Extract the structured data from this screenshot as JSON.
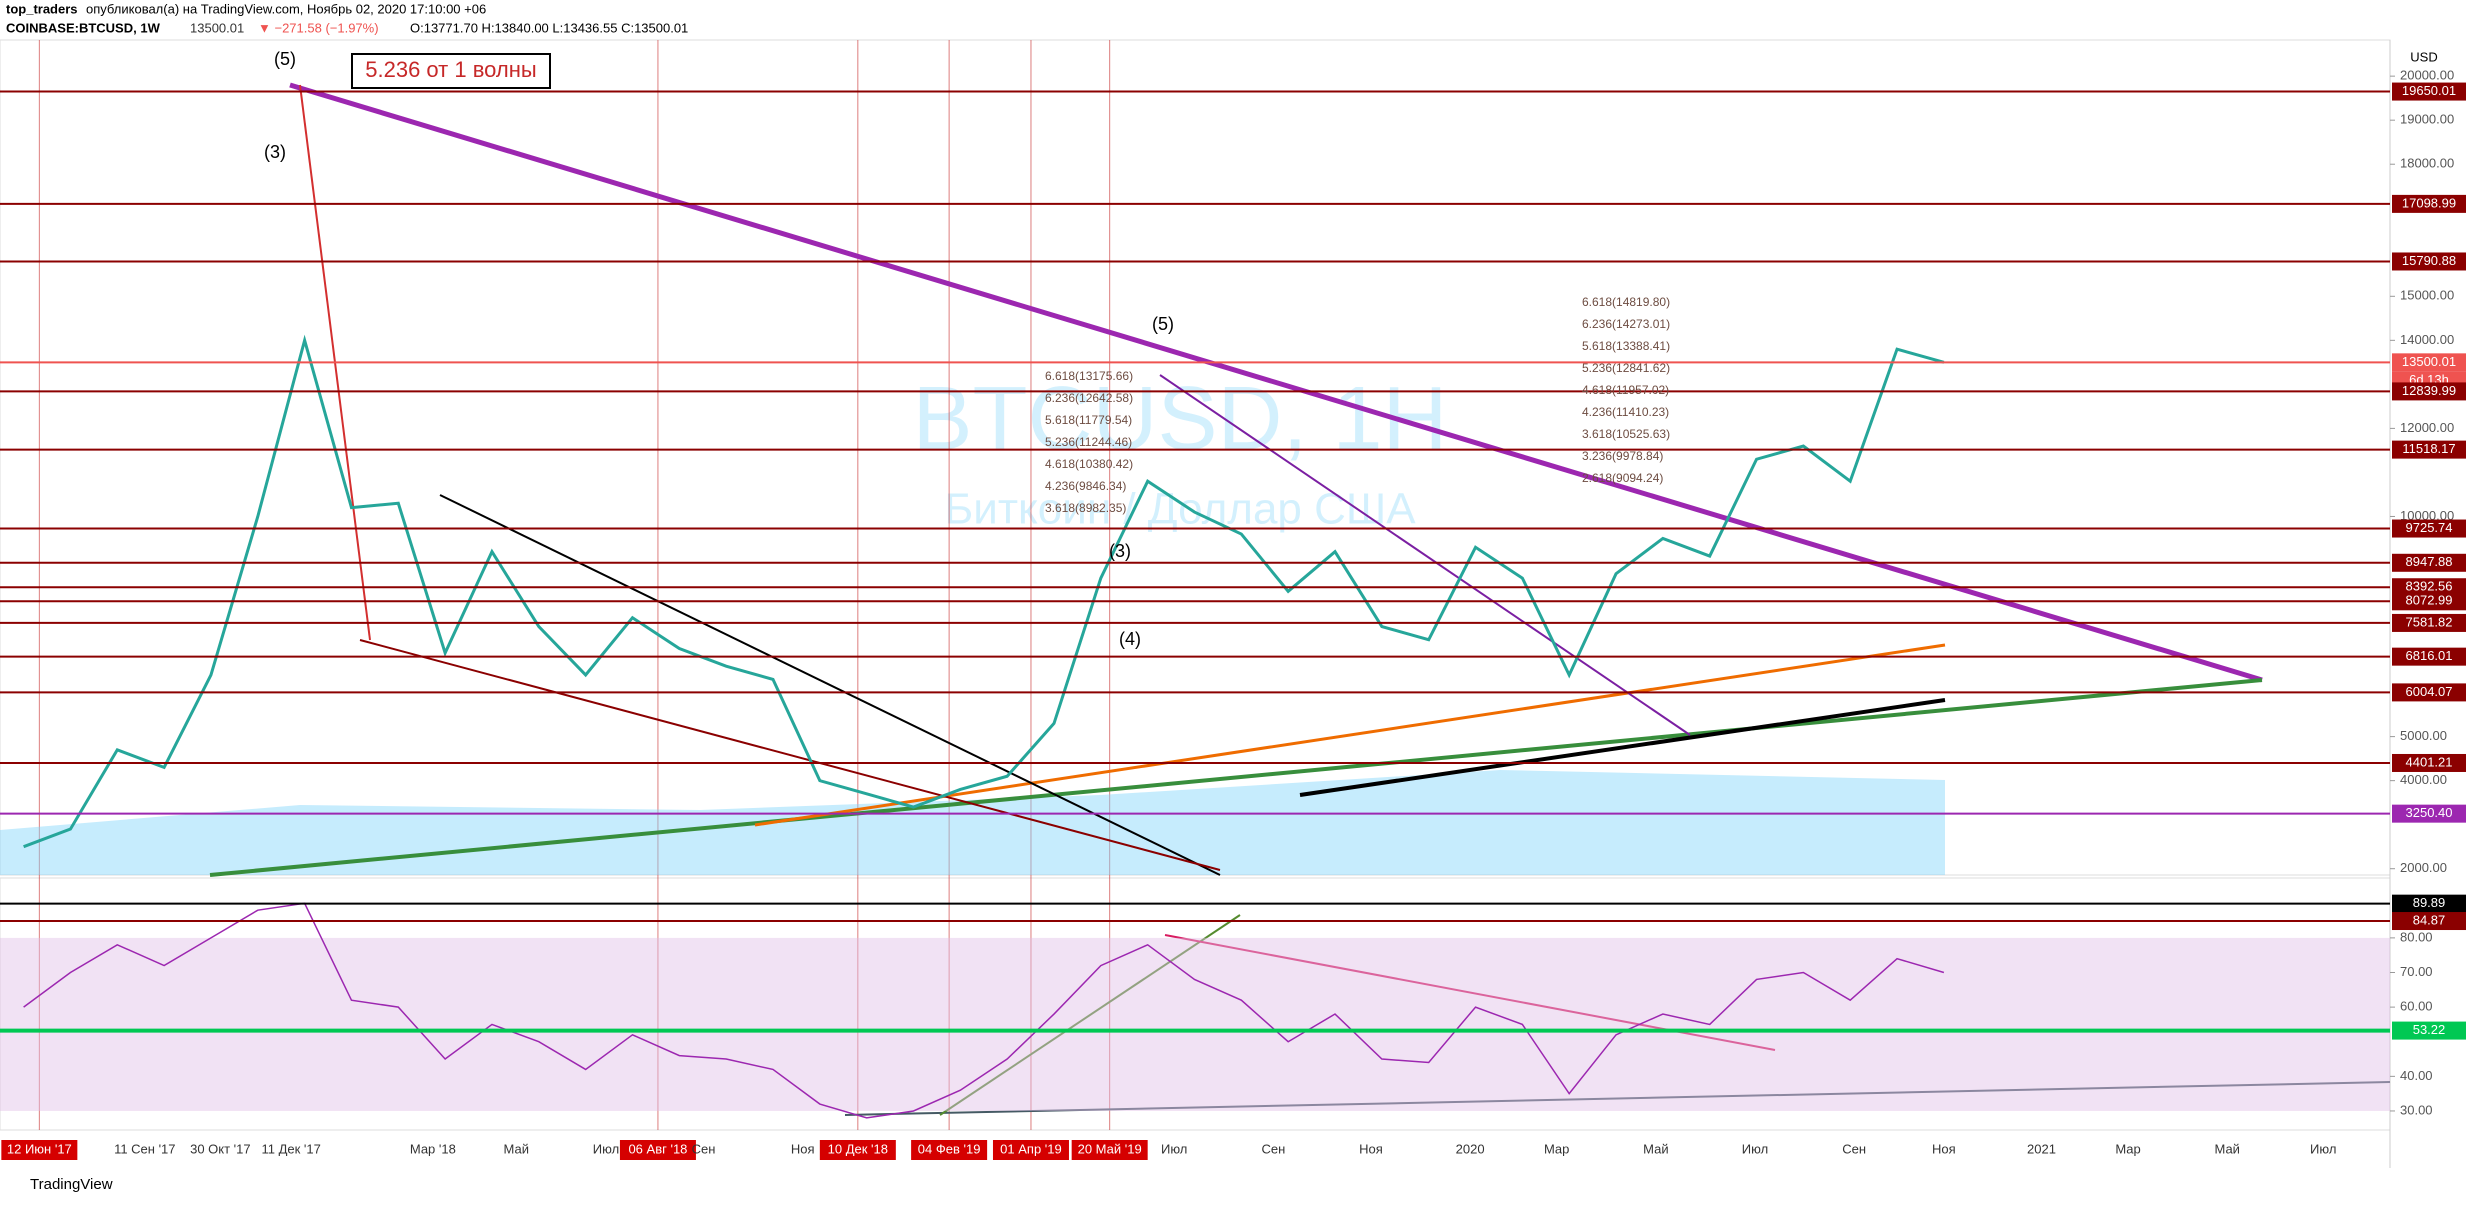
{
  "header": {
    "author": "top_traders",
    "published": "опубликовал(а) на TradingView.com, Ноябрь 02, 2020 17:10:00 +06",
    "symbol": "COINBASE:BTCUSD, 1W",
    "last": "13500.01",
    "change": "▼ −271.58 (−1.97%)",
    "ohlc": "O:13771.70 H:13840.00 L:13436.55 C:13500.01"
  },
  "watermark": {
    "symbol": "BTCUSD, 1H",
    "description": "Биткоин / Доллар США"
  },
  "annotation": "5.236 от 1 волны",
  "fib_labels": {
    "middle": [
      "6.618(13175.66)",
      "6.236(12642.58)",
      "5.618(11779.54)",
      "5.236(11244.46)",
      "4.618(10380.42)",
      "4.236(9846.34)",
      "3.618(8982.35)"
    ],
    "right": [
      "6.618(14819.80)",
      "6.236(14273.01)",
      "5.618(13388.41)",
      "5.236(12841.62)",
      "4.618(11957.02)",
      "4.236(11410.23)",
      "3.618(10525.63)",
      "3.236(9978.84)",
      "2.618(9094.24)"
    ]
  },
  "wave_labels": [
    "(5)",
    "(3)",
    "(5)",
    "(3)",
    "(4)"
  ],
  "time_axis": [
    {
      "label": "12 Июн '17",
      "highlight": true
    },
    {
      "label": "11 Сен '17",
      "highlight": false
    },
    {
      "label": "30 Окт '17",
      "highlight": false
    },
    {
      "label": "11 Дек '17",
      "highlight": false
    },
    {
      "label": "Мар '18",
      "highlight": false
    },
    {
      "label": "Май",
      "highlight": false
    },
    {
      "label": "Июл",
      "highlight": false
    },
    {
      "label": "06 Авг '18",
      "highlight": true
    },
    {
      "label": "Сен",
      "highlight": false
    },
    {
      "label": "Ноя",
      "highlight": false
    },
    {
      "label": "10 Дек '18",
      "highlight": true
    },
    {
      "label": "04 Фев '19",
      "highlight": true
    },
    {
      "label": "01 Апр '19",
      "highlight": true
    },
    {
      "label": "20 Май '19",
      "highlight": true
    },
    {
      "label": "Июл",
      "highlight": false
    },
    {
      "label": "Сен",
      "highlight": false
    },
    {
      "label": "Ноя",
      "highlight": false
    },
    {
      "label": "2020",
      "highlight": false
    },
    {
      "label": "Мар",
      "highlight": false
    },
    {
      "label": "Май",
      "highlight": false
    },
    {
      "label": "Июл",
      "highlight": false
    },
    {
      "label": "Сен",
      "highlight": false
    },
    {
      "label": "Ноя",
      "highlight": false
    },
    {
      "label": "2021",
      "highlight": false
    },
    {
      "label": "Мар",
      "highlight": false
    },
    {
      "label": "Май",
      "highlight": false
    },
    {
      "label": "Июл",
      "highlight": false
    }
  ],
  "footer": "TradingView",
  "chart_data": [
    {
      "type": "line",
      "currency": "USD",
      "color": "#26a69a",
      "categories": [
        null,
        null,
        null,
        null,
        null,
        null,
        null,
        null,
        null,
        null,
        null,
        null,
        null,
        null,
        null,
        null,
        null,
        null,
        null,
        null,
        null,
        null,
        null,
        null,
        null,
        null,
        null,
        null,
        null,
        null,
        null,
        null,
        null,
        null,
        null,
        null,
        null,
        null,
        null,
        null,
        null,
        null
      ],
      "values": [
        2500,
        2900,
        4700,
        4300,
        6400,
        10000,
        14000,
        10200,
        10300,
        6900,
        9200,
        7500,
        6400,
        7700,
        7000,
        6600,
        6300,
        4000,
        3700,
        3400,
        3800,
        4100,
        5300,
        8600,
        10800,
        10100,
        9600,
        8300,
        9200,
        7500,
        7200,
        9300,
        8600,
        6400,
        8700,
        9500,
        9100,
        11300,
        11600,
        10800,
        13800,
        13500
      ],
      "ylim": [
        1857,
        20821
      ],
      "yticks": [
        {
          "value": 20000,
          "label": "20000.00"
        },
        {
          "value": 19000,
          "label": "19000.00"
        },
        {
          "value": 18000,
          "label": "18000.00"
        },
        {
          "value": 15000,
          "label": "15000.00"
        },
        {
          "value": 14000,
          "label": "14000.00"
        },
        {
          "value": 12000,
          "label": "12000.00"
        },
        {
          "value": 10000,
          "label": "10000.00"
        },
        {
          "value": 5000,
          "label": "5000.00"
        },
        {
          "value": 4000,
          "label": "4000.00"
        },
        {
          "value": 2000,
          "label": "2000.00"
        }
      ],
      "levels": [
        {
          "value": 19650.01,
          "label": "19650.01",
          "color": "#8b0000"
        },
        {
          "value": 17098.99,
          "label": "17098.99",
          "color": "#8b0000"
        },
        {
          "value": 15790.88,
          "label": "15790.88",
          "color": "#8b0000"
        },
        {
          "value": 13500.01,
          "label": "13500.01",
          "color": "#ef5350"
        },
        {
          "value": 12839.99,
          "label": "12839.99",
          "color": "#8b0000"
        },
        {
          "value": 11518.17,
          "label": "11518.17",
          "color": "#8b0000"
        },
        {
          "value": 9725.74,
          "label": "9725.74",
          "color": "#8b0000"
        },
        {
          "value": 8947.88,
          "label": "8947.88",
          "color": "#8b0000"
        },
        {
          "value": 8392.56,
          "label": "8392.56",
          "color": "#8b0000"
        },
        {
          "value": 8072.99,
          "label": "8072.99",
          "color": "#8b0000"
        },
        {
          "value": 7581.82,
          "label": "7581.82",
          "color": "#8b0000"
        },
        {
          "value": 6816.01,
          "label": "6816.01",
          "color": "#8b0000"
        },
        {
          "value": 6004.07,
          "label": "6004.07",
          "color": "#8b0000"
        },
        {
          "value": 4401.21,
          "label": "4401.21",
          "color": "#8b0000"
        },
        {
          "value": 3250.4,
          "label": "3250.40",
          "color": "#9c27b0"
        }
      ],
      "countdown": "6d 13h"
    },
    {
      "type": "line",
      "name": "RSI",
      "color": "#9c27b0",
      "categories": [
        null,
        null,
        null,
        null,
        null,
        null,
        null,
        null,
        null,
        null,
        null,
        null,
        null,
        null,
        null,
        null,
        null,
        null,
        null,
        null,
        null,
        null,
        null,
        null,
        null,
        null,
        null,
        null,
        null,
        null,
        null,
        null,
        null,
        null,
        null,
        null,
        null,
        null,
        null,
        null,
        null,
        null
      ],
      "values": [
        60,
        70,
        78,
        72,
        80,
        88,
        90,
        62,
        60,
        45,
        55,
        50,
        42,
        52,
        46,
        45,
        42,
        32,
        28,
        30,
        36,
        45,
        58,
        72,
        78,
        68,
        62,
        50,
        58,
        45,
        44,
        60,
        55,
        35,
        52,
        58,
        55,
        68,
        70,
        62,
        74,
        70
      ],
      "ylim": [
        24.5,
        97.3
      ],
      "yticks": [
        {
          "value": 80,
          "label": "80.00"
        },
        {
          "value": 70,
          "label": "70.00"
        },
        {
          "value": 60,
          "label": "60.00"
        },
        {
          "value": 40,
          "label": "40.00"
        },
        {
          "value": 30,
          "label": "30.00"
        }
      ],
      "levels": [
        {
          "value": 89.89,
          "label": "89.89",
          "color": "#000000"
        },
        {
          "value": 84.87,
          "label": "84.87",
          "color": "#8b0000"
        },
        {
          "value": 53.22,
          "label": "53.22",
          "color": "#00c853"
        }
      ]
    }
  ]
}
